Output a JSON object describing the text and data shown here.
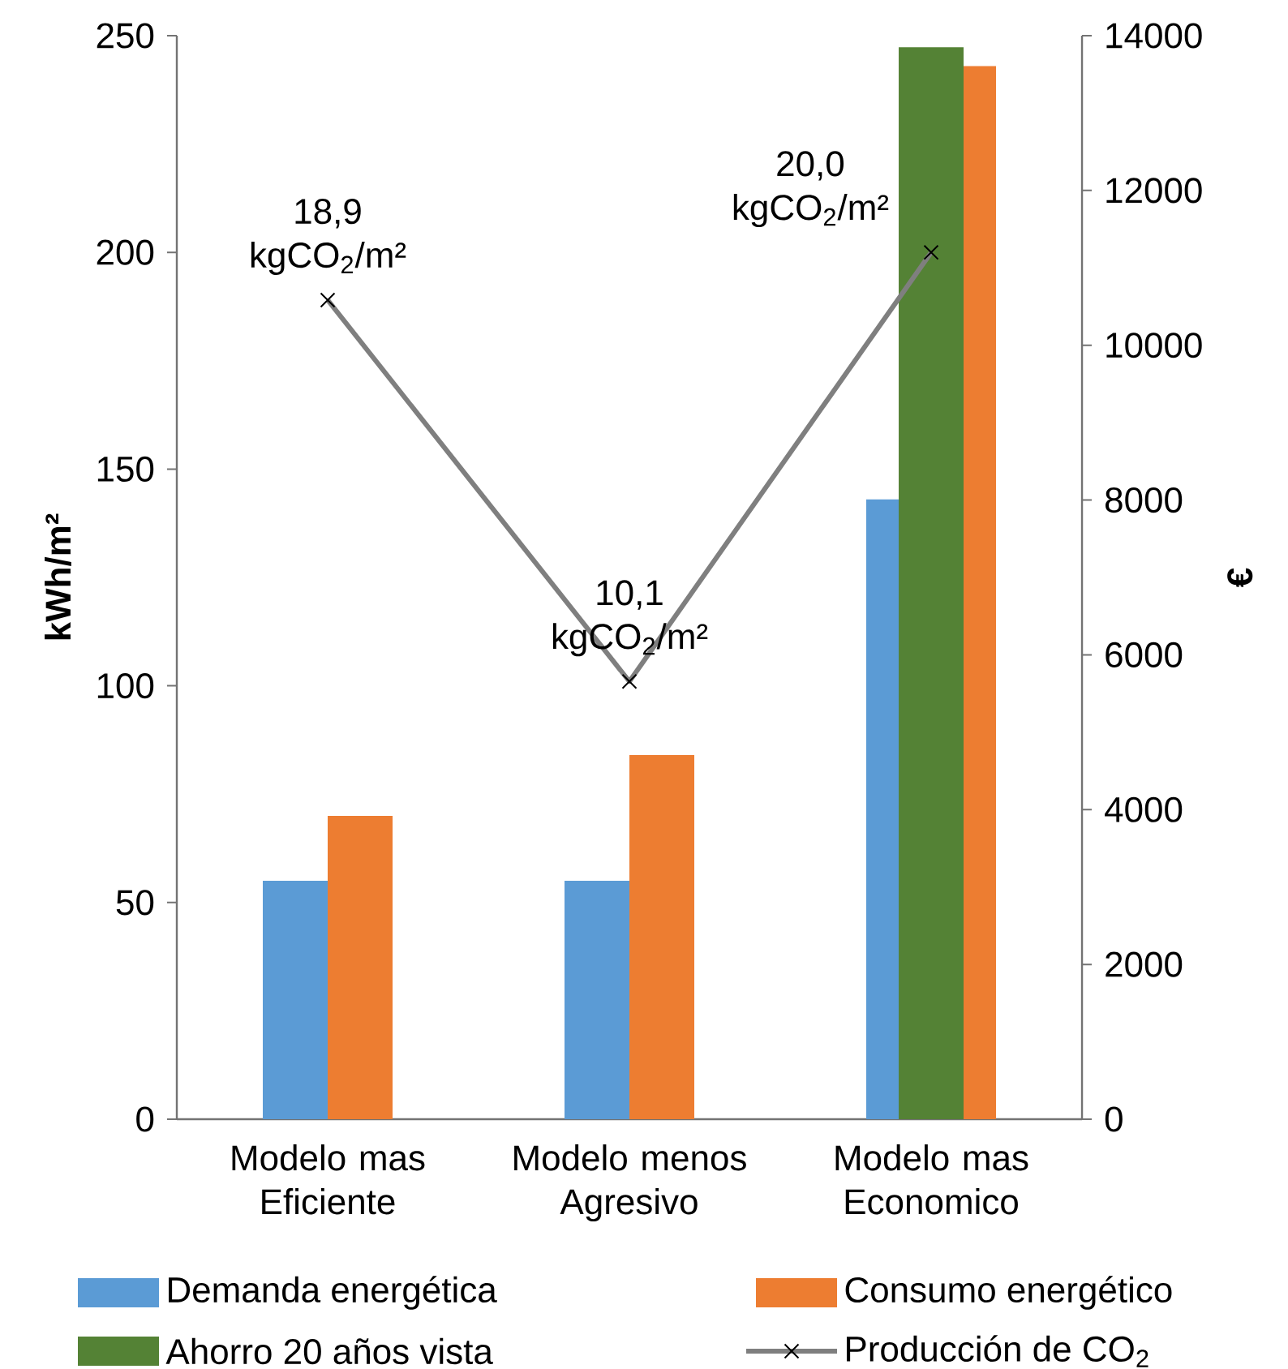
{
  "chart_data": {
    "type": "bar",
    "categories": [
      "Modelo mas Eficiente",
      "Modelo menos Agresivo",
      "Modelo mas Economico"
    ],
    "ylabel": "kWh/m²",
    "y2label": "€",
    "ylim": [
      0,
      250
    ],
    "yticks": [
      0,
      50,
      100,
      150,
      200,
      250
    ],
    "y2lim": [
      0,
      14000
    ],
    "y2ticks": [
      0,
      2000,
      4000,
      6000,
      8000,
      10000,
      12000,
      14000
    ],
    "series": [
      {
        "name": "Demanda energética",
        "color": "#5b9bd5",
        "values": [
          55,
          55,
          143
        ]
      },
      {
        "name": "Consumo energético",
        "color": "#ed7d31",
        "values": [
          70,
          84,
          243
        ]
      },
      {
        "name": "Ahorro 20 años vista",
        "color": "#548235",
        "values": [
          null,
          null,
          13850
        ],
        "axis": "y2"
      },
      {
        "name": "Producción de CO$_{2}$",
        "color": "#7f7f7f",
        "type": "line",
        "values": [
          189,
          101,
          200
        ]
      }
    ],
    "annotations": [
      {
        "text": "18,9 kgCO$_{2}$/m²",
        "x": "Modelo mas Eficiente",
        "y": 189
      },
      {
        "text": "10,1 kgCO$_{2}$/m²",
        "x": "Modelo menos Agresivo",
        "y": 101
      },
      {
        "text": "20,0 kgCO$_{2}$/m²",
        "x": "Modelo mas Economico",
        "y": 200
      }
    ],
    "marker": "cross",
    "line_style": "solid",
    "legend": "bottom"
  }
}
